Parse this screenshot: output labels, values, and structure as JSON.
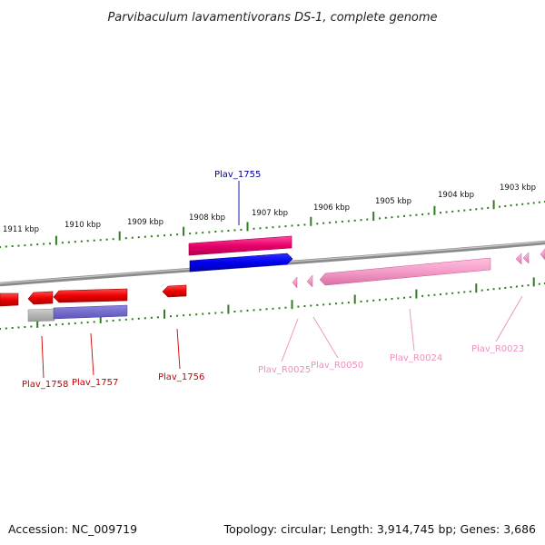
{
  "title": "Parvibaculum lavamentivorans DS-1, complete genome",
  "scale_labels": [
    "1911 kbp",
    "1910 kbp",
    "1909 kbp",
    "1908 kbp",
    "1907 kbp",
    "1906 kbp",
    "1905 kbp",
    "1904 kbp",
    "1903 kbp"
  ],
  "genes": [
    {
      "name": "Plav_1755",
      "color": "#000099"
    },
    {
      "name": "Plav_1756",
      "color": "#cc0000"
    },
    {
      "name": "Plav_1757",
      "color": "#cc0000"
    },
    {
      "name": "Plav_1758",
      "color": "#cc0000"
    },
    {
      "name": "Plav_R0025",
      "color": "#e87aa8"
    },
    {
      "name": "Plav_R0050",
      "color": "#e87aa8"
    },
    {
      "name": "Plav_R0024",
      "color": "#e87aa8"
    },
    {
      "name": "Plav_R0023",
      "color": "#e87aa8"
    }
  ],
  "footer": {
    "accession": "Accession: NC_009719",
    "summary": "Topology: circular; Length: 3,914,745 bp; Genes: 3,686"
  }
}
